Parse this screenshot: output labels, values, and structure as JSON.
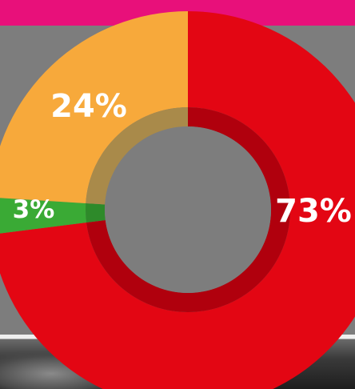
{
  "colors": {
    "top_band": "#e8107a",
    "background": "#7d7d7d"
  },
  "chart_data": {
    "type": "pie",
    "title": "",
    "slices": [
      {
        "label": "73%",
        "value": 73,
        "color": "#e30613",
        "inner_color": "#b0000d"
      },
      {
        "label": "3%",
        "value": 3,
        "color": "#3aaa35",
        "inner_color": "#2e8a2a"
      },
      {
        "label": "24%",
        "value": 24,
        "color": "#f7a93b",
        "inner_color": "#a98a4a"
      }
    ],
    "donut": true,
    "legend": "none",
    "grid": false
  }
}
